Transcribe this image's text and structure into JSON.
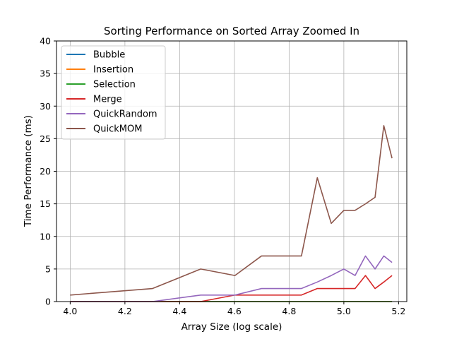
{
  "chart_data": {
    "type": "line",
    "title": "Sorting Performance on Sorted Array Zoomed In",
    "xlabel": "Array Size (log scale)",
    "ylabel": "Time Performance (ms)",
    "xlim": [
      3.95,
      5.23
    ],
    "ylim": [
      0,
      40
    ],
    "xticks": [
      4.0,
      4.2,
      4.4,
      4.6,
      4.8,
      5.0,
      5.2
    ],
    "xtick_labels": [
      "4.0",
      "4.2",
      "4.4",
      "4.6",
      "4.8",
      "5.0",
      "5.2"
    ],
    "yticks": [
      0,
      5,
      10,
      15,
      20,
      25,
      30,
      35,
      40
    ],
    "ytick_labels": [
      "0",
      "5",
      "10",
      "15",
      "20",
      "25",
      "30",
      "35",
      "40"
    ],
    "grid": true,
    "legend_position": "top-left",
    "x": [
      4.0,
      4.301,
      4.477,
      4.602,
      4.699,
      4.778,
      4.845,
      4.903,
      4.954,
      5.0,
      5.041,
      5.079,
      5.114,
      5.146,
      5.176
    ],
    "series": [
      {
        "name": "Bubble",
        "color": "#1f77b4",
        "values": [
          0,
          0,
          0,
          0,
          0,
          0,
          0,
          0,
          0,
          0,
          0,
          0,
          0,
          0,
          0
        ]
      },
      {
        "name": "Insertion",
        "color": "#ff7f0e",
        "values": [
          0,
          0,
          0,
          0,
          0,
          0,
          0,
          0,
          0,
          0,
          0,
          0,
          0,
          0,
          0
        ]
      },
      {
        "name": "Selection",
        "color": "#2ca02c",
        "values": [
          0,
          0,
          0,
          0,
          0,
          0,
          0,
          0,
          0,
          0,
          0,
          0,
          0,
          0,
          0
        ]
      },
      {
        "name": "Merge",
        "color": "#d62728",
        "values": [
          0,
          0,
          0,
          1,
          1,
          1,
          1,
          2,
          2,
          2,
          2,
          4,
          2,
          3,
          4
        ]
      },
      {
        "name": "QuickRandom",
        "color": "#9467bd",
        "values": [
          0,
          0,
          1,
          1,
          2,
          2,
          2,
          3,
          4,
          5,
          4,
          7,
          5,
          7,
          6
        ]
      },
      {
        "name": "QuickMOM",
        "color": "#8c564b",
        "values": [
          1,
          2,
          5,
          4,
          7,
          7,
          7,
          19,
          12,
          14,
          14,
          15,
          16,
          27,
          22
        ]
      }
    ]
  }
}
